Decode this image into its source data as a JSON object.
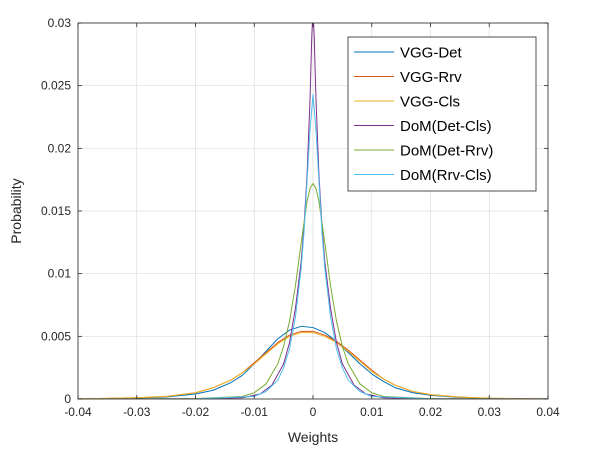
{
  "chart_data": {
    "type": "line",
    "title": "",
    "xlabel": "Weights",
    "ylabel": "Probability",
    "xlim": [
      -0.04,
      0.04
    ],
    "ylim": [
      0,
      0.03
    ],
    "grid": true,
    "legend_position": "top-right",
    "x_ticks": [
      "-0.04",
      "-0.03",
      "-0.02",
      "-0.01",
      "0",
      "0.01",
      "0.02",
      "0.03",
      "0.04"
    ],
    "y_ticks": [
      "0",
      "0.005",
      "0.01",
      "0.015",
      "0.02",
      "0.025",
      "0.03"
    ],
    "series": [
      {
        "name": "VGG-Det",
        "color": "#0072BD",
        "x": [
          -0.04,
          -0.035,
          -0.03,
          -0.025,
          -0.02,
          -0.017,
          -0.014,
          -0.012,
          -0.01,
          -0.008,
          -0.006,
          -0.004,
          -0.002,
          0,
          0.002,
          0.004,
          0.006,
          0.008,
          0.01,
          0.012,
          0.014,
          0.017,
          0.02,
          0.025,
          0.03,
          0.035,
          0.04
        ],
        "y": [
          1e-05,
          3e-05,
          7e-05,
          0.00016,
          0.0004,
          0.0007,
          0.0013,
          0.0019,
          0.0028,
          0.0038,
          0.0048,
          0.0055,
          0.0058,
          0.0057,
          0.0053,
          0.0046,
          0.0037,
          0.0028,
          0.002,
          0.0014,
          0.0009,
          0.0005,
          0.0003,
          0.00012,
          5e-05,
          2e-05,
          1e-05
        ]
      },
      {
        "name": "VGG-Rrv",
        "color": "#D95319",
        "x": [
          -0.04,
          -0.035,
          -0.03,
          -0.025,
          -0.02,
          -0.017,
          -0.014,
          -0.012,
          -0.01,
          -0.008,
          -0.006,
          -0.004,
          -0.002,
          0,
          0.002,
          0.004,
          0.006,
          0.008,
          0.01,
          0.012,
          0.014,
          0.017,
          0.02,
          0.025,
          0.03,
          0.035,
          0.04
        ],
        "y": [
          2e-05,
          5e-05,
          0.0001,
          0.0002,
          0.0005,
          0.0009,
          0.0015,
          0.0021,
          0.0029,
          0.0037,
          0.0045,
          0.0051,
          0.0054,
          0.0054,
          0.0051,
          0.0046,
          0.0039,
          0.0031,
          0.0023,
          0.0016,
          0.0011,
          0.0006,
          0.00035,
          0.00015,
          6e-05,
          3e-05,
          1e-05
        ]
      },
      {
        "name": "VGG-Cls",
        "color": "#EDB120",
        "x": [
          -0.04,
          -0.035,
          -0.03,
          -0.025,
          -0.02,
          -0.017,
          -0.014,
          -0.012,
          -0.01,
          -0.008,
          -0.006,
          -0.004,
          -0.002,
          0,
          0.002,
          0.004,
          0.006,
          0.008,
          0.01,
          0.012,
          0.014,
          0.017,
          0.02,
          0.025,
          0.03,
          0.035,
          0.04
        ],
        "y": [
          2e-05,
          5e-05,
          0.0001,
          0.0002,
          0.0005,
          0.0009,
          0.0015,
          0.0021,
          0.0028,
          0.0036,
          0.0044,
          0.005,
          0.0053,
          0.0053,
          0.005,
          0.0045,
          0.0038,
          0.003,
          0.0022,
          0.0016,
          0.0011,
          0.0006,
          0.00035,
          0.00015,
          6e-05,
          3e-05,
          1e-05
        ]
      },
      {
        "name": "DoM(Det-Cls)",
        "color": "#7E2F8E",
        "x": [
          -0.04,
          -0.02,
          -0.012,
          -0.009,
          -0.007,
          -0.005,
          -0.004,
          -0.003,
          -0.002,
          -0.0015,
          -0.001,
          -0.0005,
          -0.0002,
          0,
          0.0002,
          0.0005,
          0.001,
          0.0015,
          0.002,
          0.003,
          0.004,
          0.005,
          0.007,
          0.009,
          0.012,
          0.02,
          0.04
        ],
        "y": [
          0,
          2e-05,
          0.0001,
          0.0004,
          0.0011,
          0.0028,
          0.0045,
          0.0072,
          0.011,
          0.014,
          0.018,
          0.024,
          0.029,
          0.031,
          0.029,
          0.024,
          0.018,
          0.014,
          0.011,
          0.0072,
          0.0045,
          0.0028,
          0.0011,
          0.0004,
          0.0001,
          2e-05,
          0
        ]
      },
      {
        "name": "DoM(Det-Rrv)",
        "color": "#77AC30",
        "x": [
          -0.04,
          -0.02,
          -0.012,
          -0.01,
          -0.008,
          -0.006,
          -0.005,
          -0.004,
          -0.003,
          -0.002,
          -0.001,
          -0.0005,
          0,
          0.0005,
          0.001,
          0.002,
          0.003,
          0.004,
          0.005,
          0.006,
          0.008,
          0.01,
          0.012,
          0.02,
          0.04
        ],
        "y": [
          0,
          3e-05,
          0.0002,
          0.0005,
          0.0012,
          0.0028,
          0.0042,
          0.0062,
          0.009,
          0.0125,
          0.0158,
          0.0168,
          0.0172,
          0.0168,
          0.0158,
          0.0125,
          0.009,
          0.0062,
          0.0042,
          0.0028,
          0.0012,
          0.0005,
          0.0002,
          3e-05,
          0
        ]
      },
      {
        "name": "DoM(Rrv-Cls)",
        "color": "#4DBEEE",
        "x": [
          -0.04,
          -0.02,
          -0.01,
          -0.008,
          -0.006,
          -0.005,
          -0.004,
          -0.003,
          -0.002,
          -0.0015,
          -0.001,
          -0.0005,
          0,
          0.0005,
          0.001,
          0.0015,
          0.002,
          0.003,
          0.004,
          0.005,
          0.006,
          0.008,
          0.01,
          0.02,
          0.04
        ],
        "y": [
          0,
          1e-05,
          0.0002,
          0.0006,
          0.0015,
          0.0025,
          0.004,
          0.0065,
          0.0105,
          0.0135,
          0.0175,
          0.0215,
          0.0243,
          0.0215,
          0.0175,
          0.0135,
          0.0105,
          0.0065,
          0.004,
          0.0025,
          0.0015,
          0.0006,
          0.0002,
          1e-05,
          0
        ]
      }
    ]
  }
}
